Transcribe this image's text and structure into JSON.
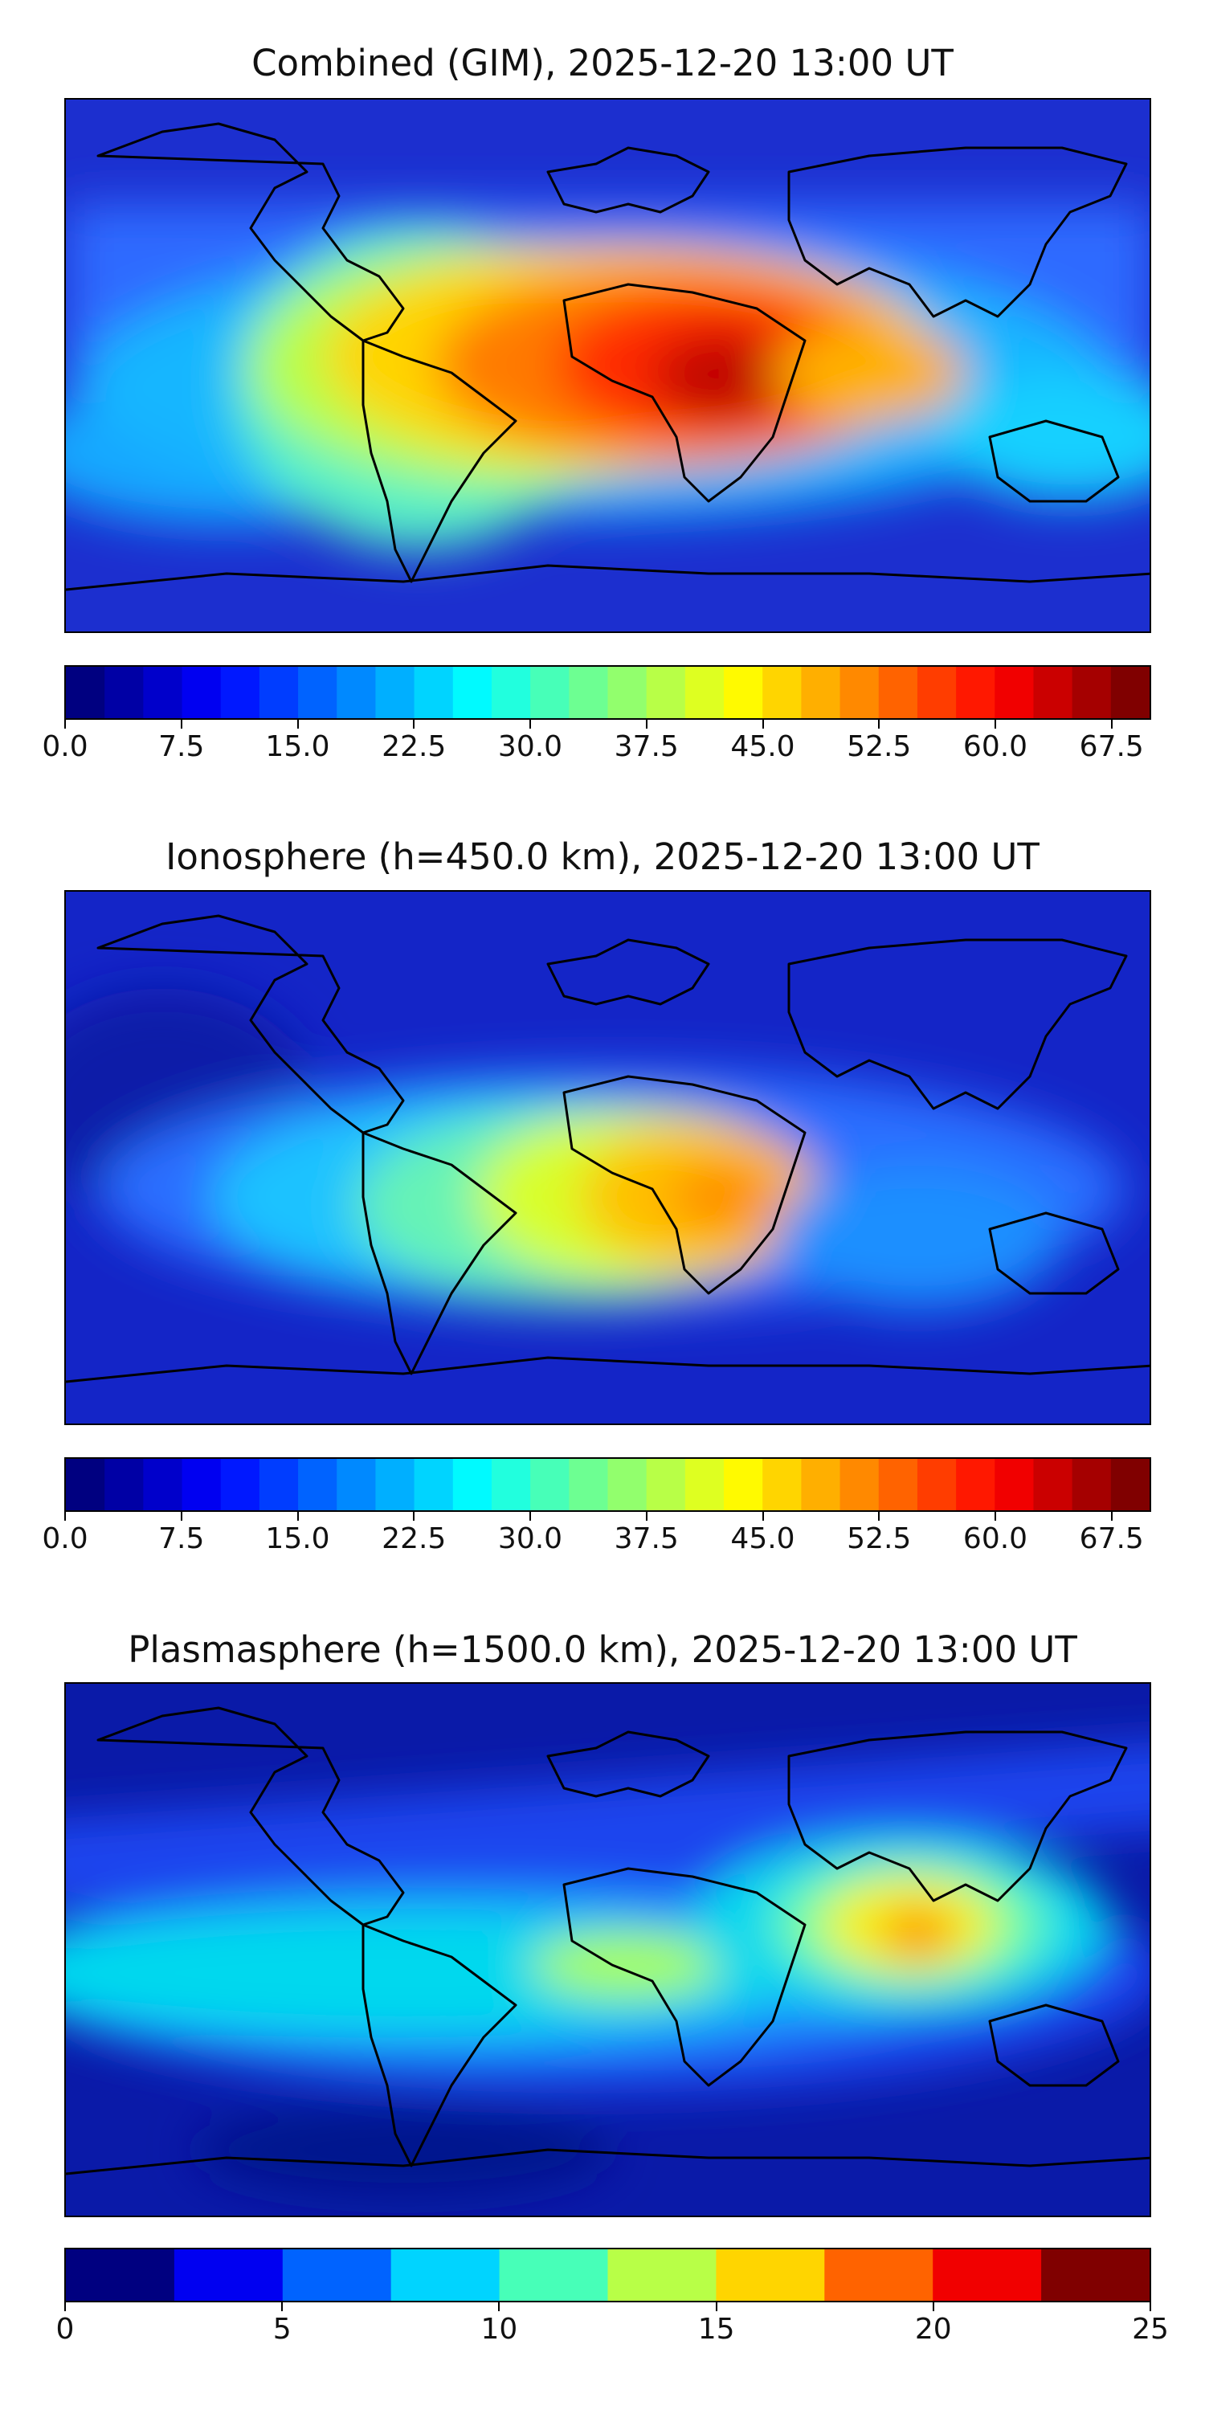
{
  "panels": [
    {
      "title": "Combined (GIM), 2025-12-20 13:00 UT",
      "colorbar": {
        "min": 0,
        "max": 70,
        "levels": 28,
        "tick_labels": [
          "0.0",
          "7.5",
          "15.0",
          "22.5",
          "30.0",
          "37.5",
          "45.0",
          "52.5",
          "60.0",
          "67.5"
        ],
        "tick_values": [
          0,
          7.5,
          15,
          22.5,
          30,
          37.5,
          45,
          52.5,
          60,
          67.5
        ]
      }
    },
    {
      "title": "Ionosphere  (h=450.0 km), 2025-12-20 13:00 UT",
      "colorbar": {
        "min": 0,
        "max": 70,
        "levels": 28,
        "tick_labels": [
          "0.0",
          "7.5",
          "15.0",
          "22.5",
          "30.0",
          "37.5",
          "45.0",
          "52.5",
          "60.0",
          "67.5"
        ],
        "tick_values": [
          0,
          7.5,
          15,
          22.5,
          30,
          37.5,
          45,
          52.5,
          60,
          67.5
        ]
      }
    },
    {
      "title": "Plasmasphere (h=1500.0 km), 2025-12-20 13:00 UT",
      "colorbar": {
        "min": 0,
        "max": 25,
        "levels": 10,
        "tick_labels": [
          "0",
          "5",
          "10",
          "15",
          "20",
          "25"
        ],
        "tick_values": [
          0,
          5,
          10,
          15,
          20,
          25
        ]
      }
    }
  ],
  "colormap": "jet",
  "map_projection": "equirectangular",
  "map_features": [
    "coastlines"
  ]
}
